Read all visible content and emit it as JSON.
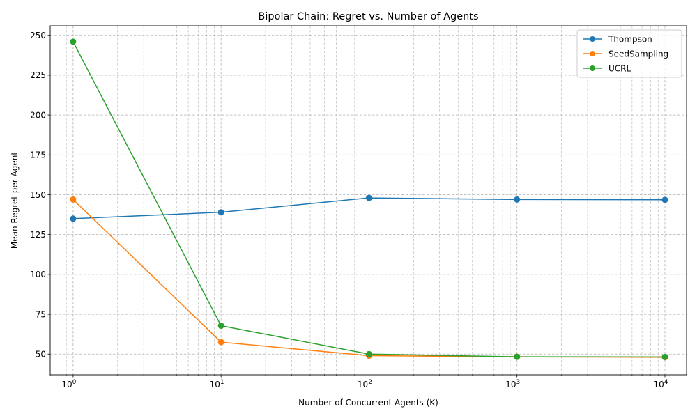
{
  "chart_data": {
    "type": "line",
    "title": "Bipolar Chain: Regret vs. Number of Agents",
    "xlabel": "Number of Concurrent Agents (K)",
    "ylabel": "Mean Regret per Agent",
    "x": [
      1,
      10,
      100,
      1000,
      10000
    ],
    "x_scale": "log",
    "xlim": [
      0.7,
      14000
    ],
    "ylim": [
      37,
      256
    ],
    "x_ticks": [
      {
        "base": "10",
        "exp": "0",
        "value": 1
      },
      {
        "base": "10",
        "exp": "1",
        "value": 10
      },
      {
        "base": "10",
        "exp": "2",
        "value": 100
      },
      {
        "base": "10",
        "exp": "3",
        "value": 1000
      },
      {
        "base": "10",
        "exp": "4",
        "value": 10000
      }
    ],
    "y_ticks": [
      "50",
      "75",
      "100",
      "125",
      "150",
      "175",
      "200",
      "225",
      "250"
    ],
    "grid": true,
    "legend_position": "top-right",
    "series": [
      {
        "name": "Thompson",
        "color": "#1f77b4",
        "values": [
          135,
          139,
          148,
          147,
          146.8
        ]
      },
      {
        "name": "SeedSampling",
        "color": "#ff7f0e",
        "values": [
          147,
          57.5,
          49,
          48.3,
          48
        ]
      },
      {
        "name": "UCRL",
        "color": "#2ca02c",
        "values": [
          246,
          67.8,
          50,
          48.3,
          48.2
        ]
      }
    ]
  }
}
